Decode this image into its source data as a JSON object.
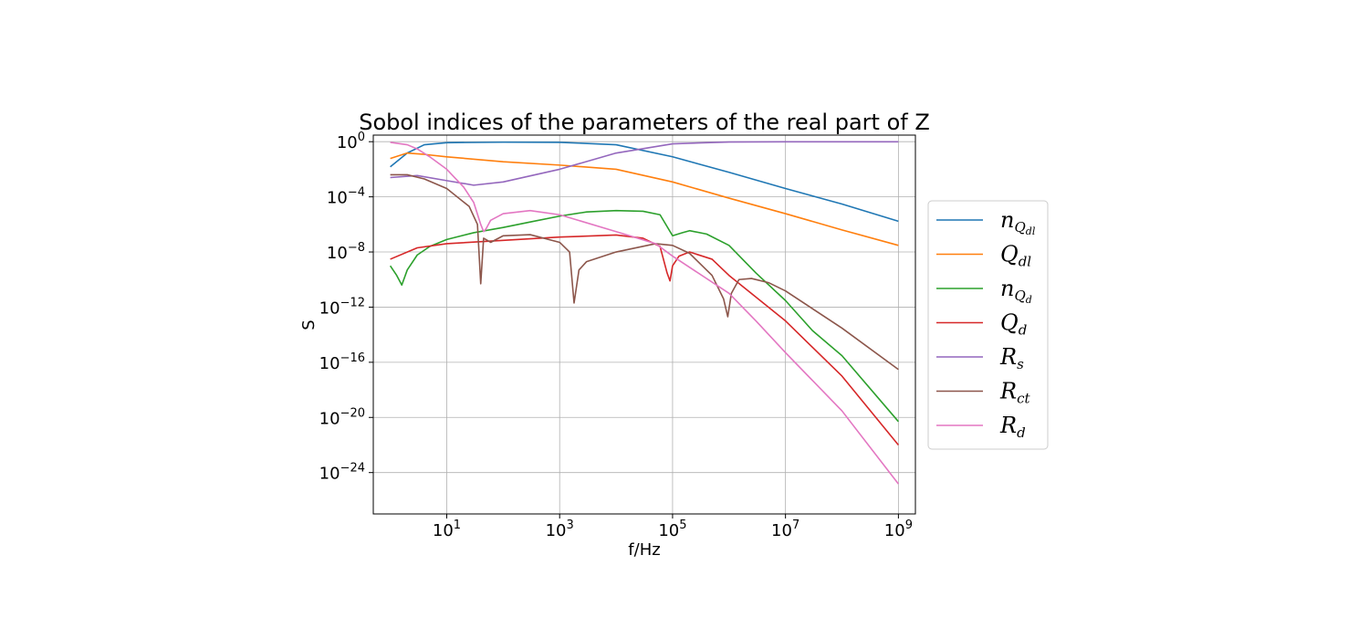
{
  "chart_data": {
    "type": "line",
    "title": "Sobol indices of the parameters of the real part of Z",
    "xlabel": "f/Hz",
    "ylabel": "S",
    "xscale": "log",
    "yscale": "log",
    "xlim": [
      0.5,
      2000000000
    ],
    "ylim": [
      1e-27,
      3
    ],
    "x_ticks": [
      {
        "base": "10",
        "exp": "1",
        "value": 10
      },
      {
        "base": "10",
        "exp": "3",
        "value": 1000
      },
      {
        "base": "10",
        "exp": "5",
        "value": 100000
      },
      {
        "base": "10",
        "exp": "7",
        "value": 10000000
      },
      {
        "base": "10",
        "exp": "9",
        "value": 1000000000
      }
    ],
    "y_ticks": [
      {
        "base": "10",
        "exp": "0",
        "value": 1
      },
      {
        "base": "10",
        "exp": "−4",
        "value": 0.0001
      },
      {
        "base": "10",
        "exp": "−8",
        "value": 1e-08
      },
      {
        "base": "10",
        "exp": "−12",
        "value": 1e-12
      },
      {
        "base": "10",
        "exp": "−16",
        "value": 1e-16
      },
      {
        "base": "10",
        "exp": "−20",
        "value": 1e-20
      },
      {
        "base": "10",
        "exp": "−24",
        "value": 1e-24
      }
    ],
    "grid": true,
    "legend_position": "outside-right",
    "series": [
      {
        "name": "n_{Q_{dl}}",
        "label_main": "n",
        "label_sub": "Q",
        "label_subsub": "dl",
        "color": "#1f77b4",
        "x": [
          1,
          2,
          4,
          10,
          100,
          1000,
          10000,
          100000,
          1000000,
          10000000,
          100000000,
          1000000000
        ],
        "y": [
          0.015,
          0.15,
          0.6,
          0.85,
          0.92,
          0.9,
          0.6,
          0.08,
          0.006,
          0.0004,
          3e-05,
          1.7e-06
        ]
      },
      {
        "name": "Q_{dl}",
        "label_main": "Q",
        "label_sub": "dl",
        "color": "#ff7f0e",
        "x": [
          1,
          2,
          4,
          10,
          100,
          1000,
          10000,
          100000,
          1000000,
          10000000,
          100000000,
          1000000000
        ],
        "y": [
          0.06,
          0.15,
          0.12,
          0.08,
          0.035,
          0.02,
          0.01,
          0.0012,
          8e-05,
          6e-06,
          4e-07,
          3e-08
        ]
      },
      {
        "name": "n_{Q_d}",
        "label_main": "n",
        "label_sub": "Q",
        "label_subsub": "d",
        "color": "#2ca02c",
        "x": [
          1,
          1.3,
          1.6,
          2,
          3,
          5,
          10,
          30,
          100,
          300,
          1000,
          3000,
          10000,
          30000,
          60000,
          100000,
          150000,
          200000,
          400000,
          1000000,
          3000000,
          10000000,
          30000000,
          100000000,
          1000000000
        ],
        "y": [
          1e-09,
          2e-10,
          4e-11,
          5e-10,
          6e-09,
          2.5e-08,
          8e-08,
          2.5e-07,
          6e-07,
          1.5e-06,
          4e-06,
          8e-06,
          1e-05,
          9e-06,
          5e-06,
          1.5e-07,
          2.5e-07,
          3.5e-07,
          2e-07,
          3e-08,
          3e-10,
          3e-12,
          2e-14,
          3e-16,
          5e-21
        ]
      },
      {
        "name": "Q_d",
        "label_main": "Q",
        "label_sub": "d",
        "color": "#d62728",
        "x": [
          1,
          3,
          10,
          100,
          1000,
          10000,
          30000,
          60000,
          80000,
          90000,
          100000,
          130000,
          200000,
          500000,
          1000000,
          10000000,
          100000000,
          1000000000
        ],
        "y": [
          3e-09,
          2e-08,
          4e-08,
          7e-08,
          1.2e-07,
          1.7e-07,
          1e-07,
          2.5e-08,
          3e-10,
          8e-11,
          1e-09,
          5e-09,
          1e-08,
          3e-09,
          2e-10,
          1e-13,
          1e-17,
          1e-22
        ]
      },
      {
        "name": "R_s",
        "label_main": "R",
        "label_sub": "s",
        "color": "#9467bd",
        "x": [
          1,
          3,
          10,
          30,
          100,
          1000,
          10000,
          100000,
          1000000,
          10000000,
          100000000,
          1000000000
        ],
        "y": [
          0.0025,
          0.0035,
          0.0015,
          0.0007,
          0.0012,
          0.01,
          0.15,
          0.7,
          0.95,
          0.98,
          0.98,
          0.98
        ]
      },
      {
        "name": "R_{ct}",
        "label_main": "R",
        "label_sub": "ct",
        "color": "#8c564b",
        "x": [
          1,
          2,
          4,
          10,
          25,
          35,
          40,
          45,
          60,
          100,
          300,
          1000,
          1500,
          1800,
          2200,
          3000,
          10000,
          50000,
          100000,
          200000,
          500000,
          800000,
          950000,
          1100000,
          1500000,
          2500000,
          5000000,
          10000000,
          100000000,
          1000000000
        ],
        "y": [
          0.004,
          0.004,
          0.002,
          0.0004,
          2e-05,
          1e-06,
          5e-11,
          1e-07,
          5e-08,
          1.5e-07,
          1.8e-07,
          5e-08,
          1e-08,
          2e-12,
          5e-10,
          2e-09,
          1e-08,
          4e-08,
          3e-08,
          8e-09,
          2e-10,
          4e-12,
          2e-13,
          1e-11,
          1e-10,
          1.2e-10,
          6e-11,
          1.5e-11,
          3e-14,
          3e-17
        ]
      },
      {
        "name": "R_d",
        "label_main": "R",
        "label_sub": "d",
        "color": "#e377c2",
        "x": [
          1,
          2,
          3,
          5,
          10,
          20,
          30,
          40,
          45,
          50,
          60,
          100,
          300,
          1000,
          10000,
          50000,
          100000,
          1000000,
          3000000,
          10000000,
          100000000,
          1000000000
        ],
        "y": [
          0.9,
          0.6,
          0.3,
          0.08,
          0.01,
          0.0005,
          4e-05,
          1e-06,
          3e-07,
          5e-07,
          2e-06,
          6e-06,
          1e-05,
          5e-06,
          3e-07,
          4e-08,
          5e-09,
          1e-11,
          1e-13,
          5e-16,
          3e-20,
          1.5e-25
        ]
      }
    ]
  }
}
